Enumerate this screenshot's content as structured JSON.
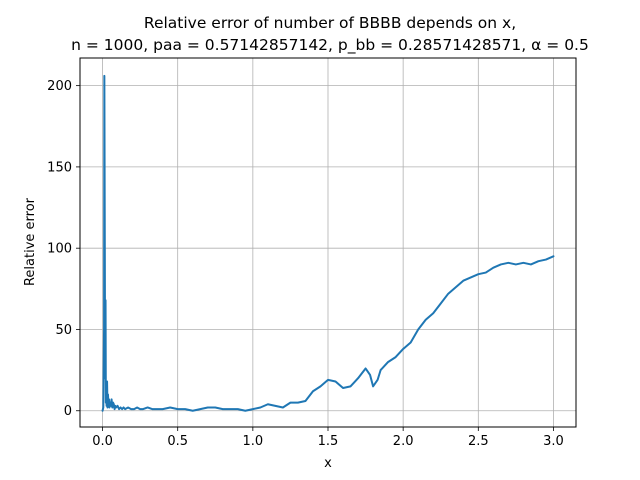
{
  "chart_data": {
    "type": "line",
    "title_line1": "Relative error of number of BBBB depends on x,",
    "title_line2": "n = 1000, paa = 0.57142857142, p_bb = 0.28571428571, α = 0.5",
    "xlabel": "x",
    "ylabel": "Relative error",
    "xlim": [
      -0.15,
      3.15
    ],
    "ylim": [
      -10,
      217
    ],
    "x_ticks": [
      0.0,
      0.5,
      1.0,
      1.5,
      2.0,
      2.5,
      3.0
    ],
    "x_tick_labels": [
      "0.0",
      "0.5",
      "1.0",
      "1.5",
      "2.0",
      "2.5",
      "3.0"
    ],
    "y_ticks": [
      0,
      50,
      100,
      150,
      200
    ],
    "y_tick_labels": [
      "0",
      "50",
      "100",
      "150",
      "200"
    ],
    "grid": true,
    "line_color": "#1f77b4",
    "series": [
      {
        "x": [
          0.0,
          0.005,
          0.01,
          0.012,
          0.015,
          0.017,
          0.02,
          0.022,
          0.025,
          0.027,
          0.03,
          0.033,
          0.036,
          0.04,
          0.043,
          0.046,
          0.05,
          0.055,
          0.06,
          0.065,
          0.07,
          0.075,
          0.08,
          0.085,
          0.09,
          0.1,
          0.11,
          0.12,
          0.13,
          0.14,
          0.15,
          0.17,
          0.19,
          0.21,
          0.23,
          0.25,
          0.27,
          0.3,
          0.33,
          0.36,
          0.4,
          0.45,
          0.5,
          0.55,
          0.6,
          0.65,
          0.7,
          0.75,
          0.8,
          0.85,
          0.9,
          0.95,
          1.0,
          1.05,
          1.1,
          1.15,
          1.2,
          1.25,
          1.3,
          1.35,
          1.4,
          1.45,
          1.5,
          1.55,
          1.6,
          1.65,
          1.7,
          1.75,
          1.78,
          1.8,
          1.83,
          1.85,
          1.88,
          1.9,
          1.95,
          2.0,
          2.05,
          2.1,
          2.15,
          2.2,
          2.25,
          2.3,
          2.35,
          2.4,
          2.45,
          2.5,
          2.55,
          2.6,
          2.65,
          2.7,
          2.75,
          2.8,
          2.85,
          2.9,
          2.95,
          3.0
        ],
        "y": [
          0,
          2,
          50,
          206,
          100,
          20,
          68,
          5,
          15,
          3,
          18,
          2,
          10,
          3,
          7,
          2,
          5,
          3,
          7,
          2,
          5,
          4,
          1,
          3,
          2,
          3,
          1,
          2,
          1,
          2,
          1,
          2,
          1,
          1,
          2,
          1,
          1,
          2,
          1,
          1,
          1,
          2,
          1,
          1,
          0,
          1,
          2,
          2,
          1,
          1,
          1,
          0,
          1,
          2,
          4,
          3,
          2,
          5,
          5,
          6,
          12,
          15,
          19,
          18,
          14,
          15,
          20,
          26,
          22,
          15,
          19,
          25,
          28,
          30,
          33,
          38,
          42,
          50,
          56,
          60,
          66,
          72,
          76,
          80,
          82,
          84,
          85,
          88,
          90,
          91,
          90,
          91,
          90,
          92,
          93,
          95
        ]
      }
    ]
  }
}
